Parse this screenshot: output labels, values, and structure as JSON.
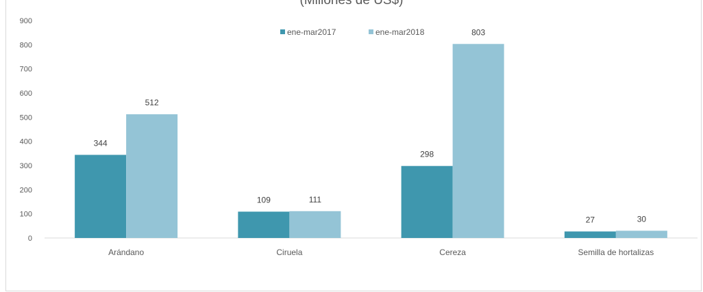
{
  "chart_data": {
    "type": "bar",
    "title": "(Millones de US$)",
    "categories": [
      "Arándano",
      "Ciruela",
      "Cereza",
      "Semilla de hortalizas"
    ],
    "series": [
      {
        "name": "ene-mar2017",
        "values": [
          344,
          109,
          298,
          27
        ],
        "color": "#3f97ae"
      },
      {
        "name": "ene-mar2018",
        "values": [
          512,
          111,
          803,
          30
        ],
        "color": "#94c4d6"
      }
    ],
    "yticks": [
      0,
      100,
      200,
      300,
      400,
      500,
      600,
      700,
      800,
      900
    ],
    "ylim": [
      0,
      900
    ],
    "xlabel": "",
    "ylabel": "",
    "grid": false,
    "legend_position": "top-center"
  }
}
